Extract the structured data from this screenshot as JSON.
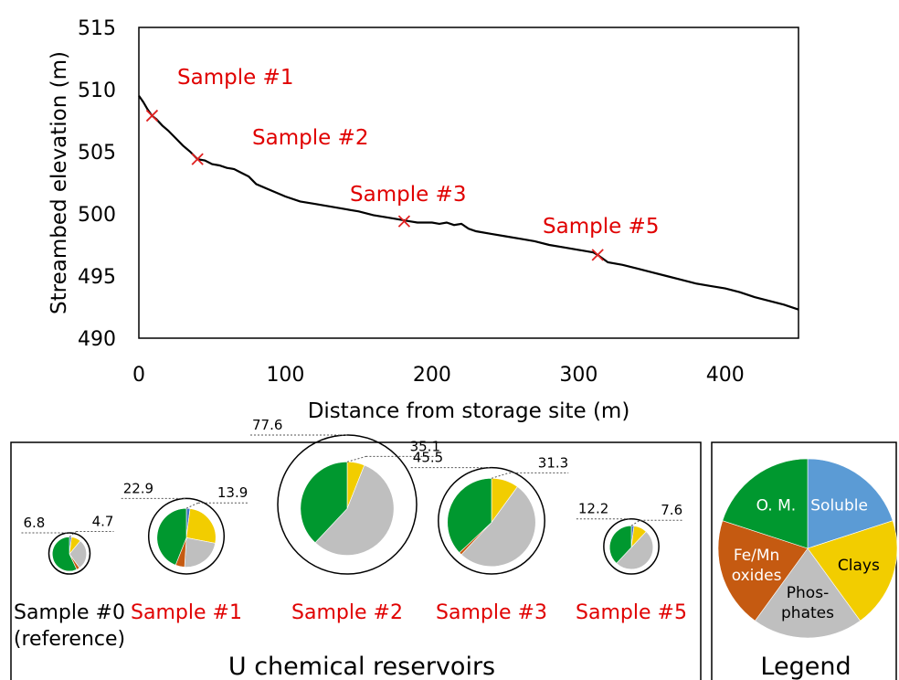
{
  "chart_data": [
    {
      "type": "line",
      "xlabel": "Distance from storage site (m)",
      "ylabel": "Streambed elevation (m)",
      "xlim": [
        0,
        450
      ],
      "ylim": [
        490,
        515
      ],
      "xticks": [
        "0",
        "100",
        "200",
        "300",
        "400"
      ],
      "yticks": [
        "490",
        "495",
        "500",
        "505",
        "510",
        "515"
      ],
      "grid": false,
      "profile": {
        "x": [
          0,
          3,
          6,
          9,
          12,
          16,
          20,
          25,
          30,
          35,
          40,
          45,
          50,
          55,
          60,
          65,
          70,
          75,
          80,
          90,
          100,
          110,
          120,
          130,
          140,
          150,
          160,
          170,
          180,
          185,
          190,
          195,
          200,
          205,
          210,
          215,
          220,
          225,
          230,
          240,
          250,
          260,
          270,
          280,
          290,
          300,
          310,
          313,
          320,
          330,
          340,
          350,
          360,
          370,
          380,
          390,
          400,
          410,
          420,
          430,
          440,
          450
        ],
        "y": [
          509.5,
          509.0,
          508.4,
          507.9,
          507.6,
          507.1,
          506.7,
          506.1,
          505.5,
          505.0,
          504.4,
          504.3,
          504.0,
          503.9,
          503.7,
          503.6,
          503.3,
          503.0,
          502.4,
          501.9,
          501.4,
          501.0,
          500.8,
          500.6,
          500.4,
          500.2,
          499.9,
          499.7,
          499.5,
          499.4,
          499.3,
          499.3,
          499.3,
          499.2,
          499.3,
          499.1,
          499.2,
          498.8,
          498.6,
          498.4,
          498.2,
          498.0,
          497.8,
          497.5,
          497.3,
          497.1,
          496.9,
          496.7,
          496.1,
          495.9,
          495.6,
          495.3,
          495.0,
          494.7,
          494.4,
          494.2,
          494.0,
          493.7,
          493.3,
          493.0,
          492.7,
          492.3
        ]
      },
      "samples": [
        {
          "label": "Sample #1",
          "x": 9,
          "y": 507.9
        },
        {
          "label": "Sample #2",
          "x": 40,
          "y": 504.4
        },
        {
          "label": "Sample #3",
          "x": 181,
          "y": 499.4
        },
        {
          "label": "Sample #5",
          "x": 313,
          "y": 496.7
        }
      ],
      "marker": "x",
      "marker_color": "#e02020"
    },
    {
      "type": "pie",
      "title": "U chemical reservoirs",
      "categories": [
        "Soluble",
        "Clays",
        "Phosphates",
        "Fe/Mn oxides",
        "O. M."
      ],
      "colors": [
        "#4472c4",
        "#f2cd00",
        "#bfbfbf",
        "#c55a11",
        "#00982f"
      ],
      "samples": [
        {
          "label": "Sample #0",
          "sublabel": "(reference)",
          "label_color": "#000000",
          "total_label": "6.8",
          "inner_label": "4.7",
          "total": 6.8,
          "inner": 4.7,
          "fractions": [
            0.02,
            0.09,
            0.29,
            0.03,
            0.57
          ]
        },
        {
          "label": "Sample #1",
          "label_color": "#e00000",
          "total_label": "22.9",
          "inner_label": "13.9",
          "total": 22.9,
          "inner": 13.9,
          "fractions": [
            0.02,
            0.26,
            0.23,
            0.05,
            0.44
          ]
        },
        {
          "label": "Sample #2",
          "label_color": "#e00000",
          "total_label": "77.6",
          "inner_label": "35.1",
          "total": 77.6,
          "inner": 35.1,
          "fractions": [
            0.0,
            0.06,
            0.56,
            0.0,
            0.38
          ]
        },
        {
          "label": "Sample #3",
          "label_color": "#e00000",
          "total_label": "45.5",
          "inner_label": "31.3",
          "total": 45.5,
          "inner": 31.3,
          "fractions": [
            0.0,
            0.1,
            0.52,
            0.01,
            0.37
          ]
        },
        {
          "label": "Sample #5",
          "label_color": "#e00000",
          "total_label": "12.2",
          "inner_label": "7.6",
          "total": 12.2,
          "inner": 7.6,
          "fractions": [
            0.02,
            0.1,
            0.5,
            0.0,
            0.38
          ]
        }
      ]
    },
    {
      "type": "pie",
      "title": "Legend",
      "slices": [
        {
          "name": "Soluble",
          "lines": [
            "Soluble"
          ],
          "value": 20,
          "color": "#5b9bd5"
        },
        {
          "name": "Clays",
          "lines": [
            "Clays"
          ],
          "value": 20,
          "color": "#f2cd00"
        },
        {
          "name": "Phosphates",
          "lines": [
            "Phos-",
            "phates"
          ],
          "value": 20,
          "color": "#bfbfbf"
        },
        {
          "name": "Fe/Mn oxides",
          "lines": [
            "Fe/Mn",
            "oxides"
          ],
          "value": 20,
          "color": "#c55a11"
        },
        {
          "name": "O. M.",
          "lines": [
            "O. M."
          ],
          "value": 20,
          "color": "#00982f"
        }
      ]
    }
  ]
}
